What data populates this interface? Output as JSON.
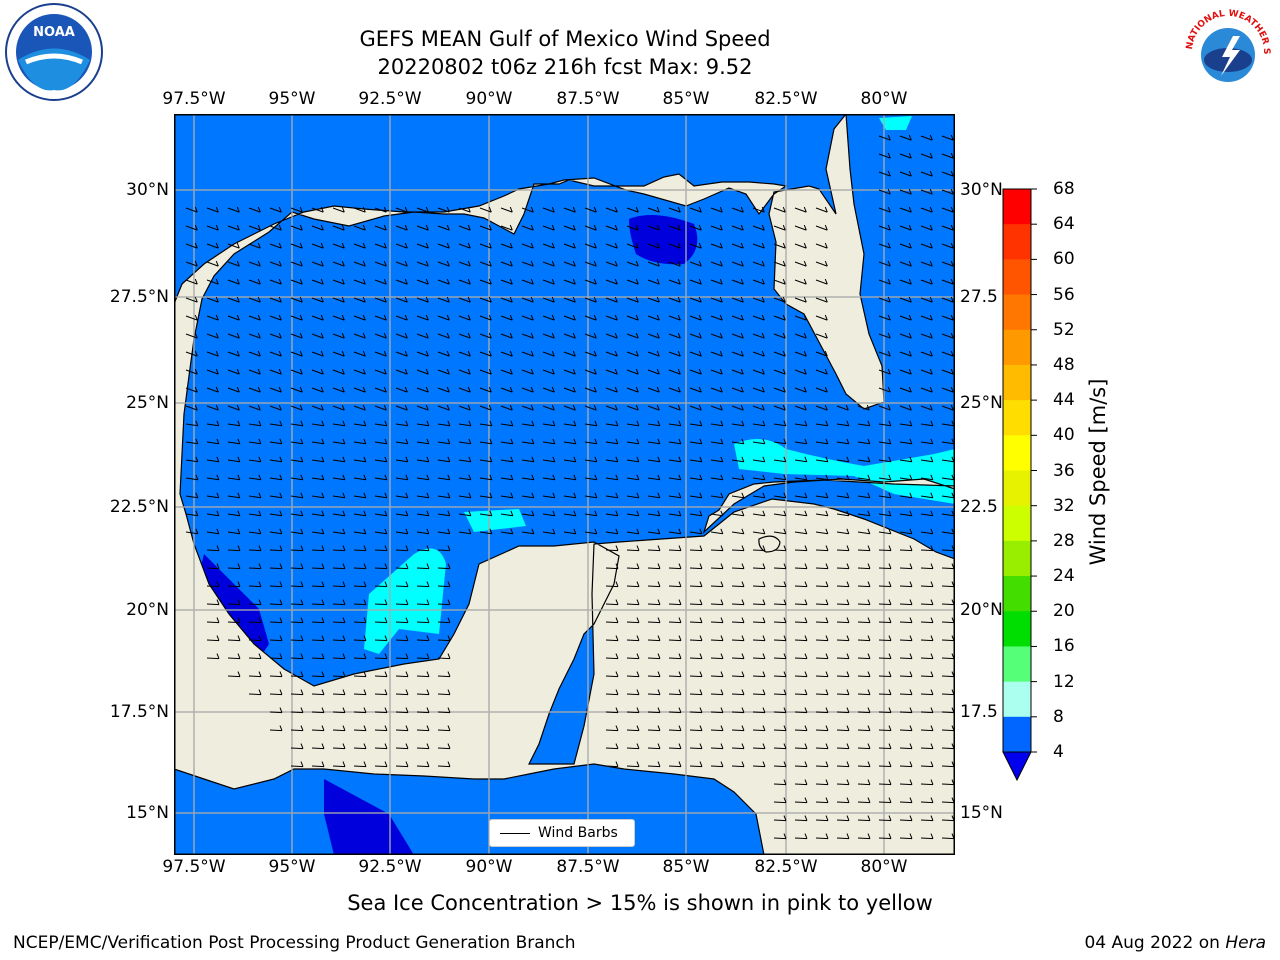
{
  "title": {
    "line1": "GEFS MEAN Gulf of Mexico Wind Speed",
    "line2": "20220802 t06z 216h fcst   Max: 9.52"
  },
  "axes": {
    "lon_ticks": [
      "97.5°W",
      "95°W",
      "92.5°W",
      "90°W",
      "87.5°W",
      "85°W",
      "82.5°W",
      "80°W"
    ],
    "lat_ticks_left": [
      "30°N",
      "27.5°N",
      "25°N",
      "22.5°N",
      "20°N",
      "17.5°N",
      "15°N"
    ],
    "lat_ticks_right": [
      "30°N",
      "27.5",
      "25°N",
      "22.5",
      "20°N",
      "17.5",
      "15°N"
    ]
  },
  "colorbar": {
    "label": "Wind Speed [m/s]",
    "ticks": [
      "68",
      "64",
      "60",
      "56",
      "52",
      "48",
      "44",
      "40",
      "36",
      "32",
      "28",
      "24",
      "20",
      "16",
      "12",
      "8",
      "4"
    ],
    "colors": [
      "#ff0000",
      "#ff3300",
      "#ff5500",
      "#ff7700",
      "#ff9900",
      "#ffbb00",
      "#ffdd00",
      "#ffff00",
      "#e6f200",
      "#ccff00",
      "#99ee00",
      "#44dd00",
      "#00dd00",
      "#55ff77",
      "#aaffee",
      "#55ffff",
      "#00ffff",
      "#0066ff"
    ],
    "under_color": "#0000ee"
  },
  "legend": {
    "label": "Wind Barbs"
  },
  "footer": {
    "note": "Sea Ice Concentration > 15% is shown in pink to yellow",
    "org": "NCEP/EMC/Verification Post Processing Product Generation Branch",
    "date": "04 Aug 2022 on",
    "host": "Hera"
  },
  "logos": {
    "left": "NOAA",
    "right": "NATIONAL WEATHER SERVICE"
  },
  "map": {
    "ocean_color": "#0077ff",
    "land_color": "#eeedde",
    "low_wind_color": "#0000dd",
    "mid_wind_color": "#00ffff"
  }
}
